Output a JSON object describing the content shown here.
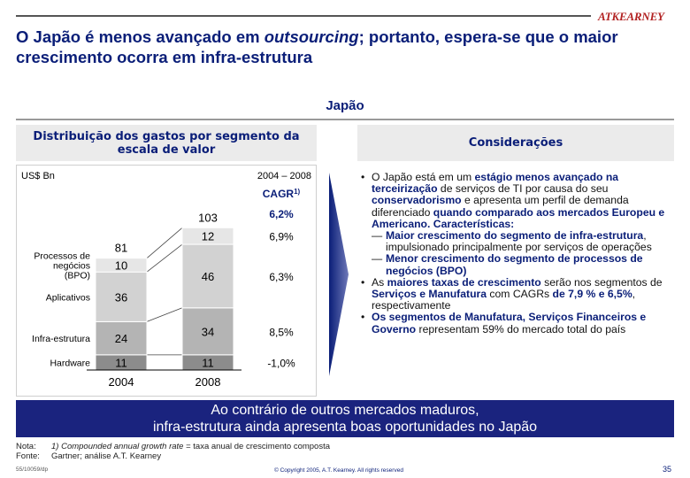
{
  "logo": "ATKEARNEY",
  "title": {
    "part1": "O Japão é menos avançado em ",
    "italic": "outsourcing",
    "part2": "; portanto, espera-se que o maior crescimento ocorra em infra-estrutura"
  },
  "region": "Japão",
  "left_header": "Distribuição dos gastos por segmento da escala de valor",
  "right_header": "Considerações",
  "chart_data": {
    "type": "bar",
    "stacked": true,
    "unit_label": "US$ Bn",
    "period_label": "2004 – 2008",
    "cagr_label": "CAGR",
    "cagr_sup": "1)",
    "categories": [
      "2004",
      "2008"
    ],
    "series": [
      {
        "name": "Hardware",
        "values": [
          11,
          11
        ],
        "cagr": "-1,0%"
      },
      {
        "name": "Infra-estrutura",
        "values": [
          24,
          34
        ],
        "cagr": "8,5%"
      },
      {
        "name": "Aplicativos",
        "values": [
          36,
          46
        ],
        "cagr": "6,3%"
      },
      {
        "name": "Processos de negócios (BPO)",
        "values": [
          10,
          12
        ],
        "cagr": "6,9%"
      }
    ],
    "totals": [
      81,
      103
    ],
    "total_cagr": "6,2%",
    "colors": [
      "#8c8c8c",
      "#b4b4b4",
      "#d2d2d2",
      "#e6e6e6"
    ]
  },
  "considerations": [
    {
      "type": "bullet",
      "parts": [
        {
          "t": "O Japão está em um "
        },
        {
          "t": "estágio menos avançado na terceirização",
          "em": true
        },
        {
          "t": " de serviços de TI por causa do seu "
        },
        {
          "t": "conservadorismo",
          "em": true
        },
        {
          "t": " e apresenta um perfil de demanda diferenciado "
        },
        {
          "t": "quando comparado aos mercados Europeu e Americano. Características:",
          "em": true
        }
      ]
    },
    {
      "type": "sub",
      "parts": [
        {
          "t": "Maior crescimento do segmento de infra-estrutura",
          "em": true
        },
        {
          "t": ", impulsionado principalmente por serviços de operações"
        }
      ]
    },
    {
      "type": "sub",
      "parts": [
        {
          "t": "Menor crescimento do segmento de processos de negócios (BPO)",
          "em": true
        }
      ]
    },
    {
      "type": "bullet",
      "parts": [
        {
          "t": "As "
        },
        {
          "t": "maiores taxas de crescimento",
          "em": true
        },
        {
          "t": " serão nos segmentos de "
        },
        {
          "t": "Serviços e Manufatura",
          "em": true
        },
        {
          "t": " com CAGRs "
        },
        {
          "t": "de 7,9 % e 6,5%",
          "em": true
        },
        {
          "t": ", respectivamente"
        }
      ]
    },
    {
      "type": "bullet",
      "parts": [
        {
          "t": "Os segmentos de Manufatura, Serviços Financeiros e Governo",
          "em": true
        },
        {
          "t": " representam 59% do mercado total do país"
        }
      ]
    }
  ],
  "banner": {
    "line1": "Ao contrário de outros mercados maduros,",
    "line2": "infra-estrutura ainda apresenta boas oportunidades no Japão"
  },
  "footnotes": {
    "nota_key": "Nota:",
    "nota_italic": "1) Compounded annual growth rate",
    "nota_rest": " = taxa anual de crescimento composta",
    "fonte_key": "Fonte:",
    "fonte_val": "Gartner; análise A.T. Kearney"
  },
  "ref": "55/10059/dp",
  "copyright": "© Copyright 2005, A.T. Kearney. All rights reserved",
  "page_number": "35"
}
